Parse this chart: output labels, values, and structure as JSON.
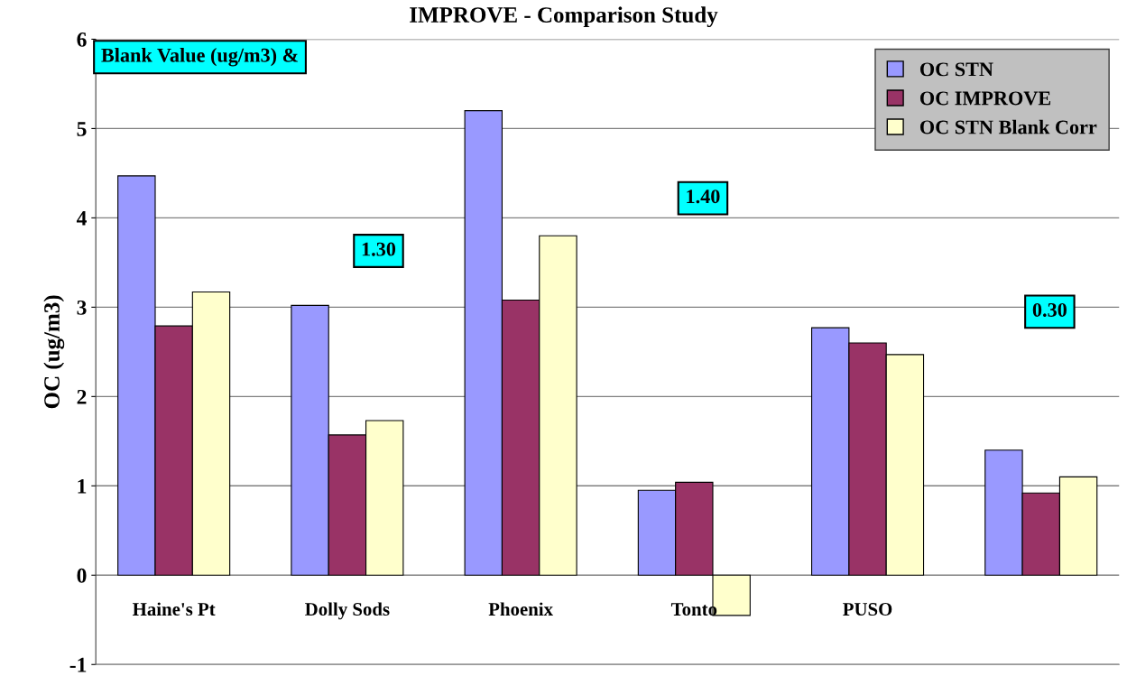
{
  "chart_data": {
    "type": "bar",
    "title": "IMPROVE - Comparison Study",
    "ylabel": "OC (ug/m3)",
    "categories": [
      "Haine's Pt",
      "Dolly Sods",
      "Phoenix",
      "Tonto",
      "PUSO",
      null
    ],
    "series": [
      {
        "name": "OC STN",
        "color": "#9999ff",
        "values": [
          4.47,
          3.02,
          5.2,
          0.95,
          2.77,
          1.4
        ]
      },
      {
        "name": "OC IMPROVE",
        "color": "#993366",
        "values": [
          2.79,
          1.57,
          3.08,
          1.04,
          2.6,
          0.92
        ]
      },
      {
        "name": "OC STN Blank Corr",
        "color": "#ffffcc",
        "values": [
          3.17,
          1.73,
          3.8,
          -0.45,
          2.47,
          1.1
        ]
      }
    ],
    "annotations": [
      "Blank Value (ug/m3) &",
      "1.30",
      "1.40",
      "0.30"
    ],
    "ylim": [
      -1,
      6
    ],
    "yticks": [
      -1,
      0,
      1,
      2,
      3,
      4,
      5,
      6
    ],
    "grid": "y",
    "legend": "top right"
  }
}
